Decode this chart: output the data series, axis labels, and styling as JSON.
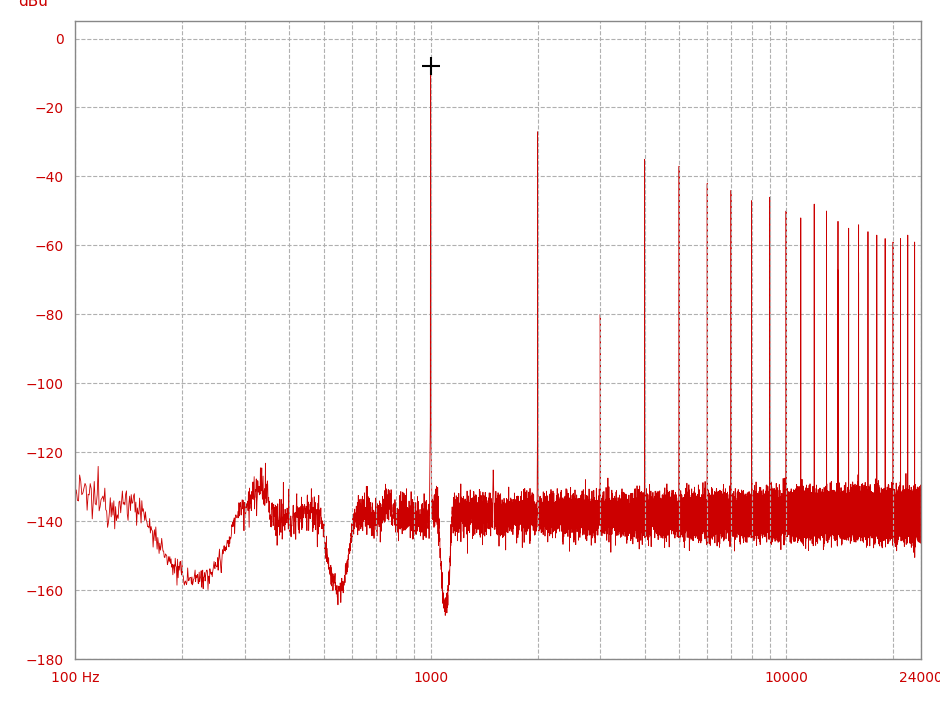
{
  "background_color": "#ffffff",
  "plot_bg_color": "#ffffff",
  "grid_color": "#b0b0b0",
  "line_color": "#cc0000",
  "axis_label_color": "#cc0000",
  "tick_label_color": "#cc0000",
  "spine_color": "#888888",
  "ylabel": "dBu",
  "xlabel_ticks": [
    "100 Hz",
    "1000",
    "10000",
    "24000"
  ],
  "xlabel_tick_vals": [
    100,
    1000,
    10000,
    24000
  ],
  "yticks": [
    0,
    -20,
    -40,
    -60,
    -80,
    -100,
    -120,
    -140,
    -160,
    -180
  ],
  "ylim": [
    -180,
    5
  ],
  "xlim": [
    100,
    24000
  ],
  "fundamental_freq": 1000,
  "fundamental_amp": -7,
  "noise_floor": -138,
  "harmonics": [
    {
      "freq": 2000,
      "amp": -27
    },
    {
      "freq": 3000,
      "amp": -80
    },
    {
      "freq": 4000,
      "amp": -35
    },
    {
      "freq": 5000,
      "amp": -37
    },
    {
      "freq": 6000,
      "amp": -42
    },
    {
      "freq": 7000,
      "amp": -44
    },
    {
      "freq": 8000,
      "amp": -47
    },
    {
      "freq": 9000,
      "amp": -46
    },
    {
      "freq": 10000,
      "amp": -50
    },
    {
      "freq": 11000,
      "amp": -52
    },
    {
      "freq": 12000,
      "amp": -48
    },
    {
      "freq": 13000,
      "amp": -50
    },
    {
      "freq": 14000,
      "amp": -53
    },
    {
      "freq": 15000,
      "amp": -55
    },
    {
      "freq": 16000,
      "amp": -54
    },
    {
      "freq": 17000,
      "amp": -56
    },
    {
      "freq": 18000,
      "amp": -57
    },
    {
      "freq": 19000,
      "amp": -58
    },
    {
      "freq": 20000,
      "amp": -59
    },
    {
      "freq": 21000,
      "amp": -58
    },
    {
      "freq": 22000,
      "amp": -57
    },
    {
      "freq": 23000,
      "amp": -59
    }
  ],
  "vgrid_freqs": [
    100,
    200,
    300,
    400,
    500,
    600,
    700,
    800,
    900,
    1000,
    2000,
    3000,
    4000,
    5000,
    6000,
    7000,
    8000,
    9000,
    10000,
    20000,
    24000
  ]
}
